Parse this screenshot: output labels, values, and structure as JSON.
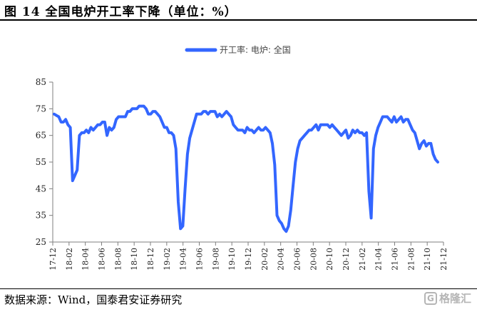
{
  "header": {
    "title": "图 14 全国电炉开工率下降（单位：%）"
  },
  "footer": {
    "source": "数据来源：Wind，国泰君安证券研究",
    "watermark_logo": "G",
    "watermark_text": "格隆汇"
  },
  "colors": {
    "series": "#3366ff",
    "axis": "#7f7f7f",
    "rule": "#000000"
  },
  "chart_data": {
    "type": "line",
    "legend_position": "top-center",
    "grid": false,
    "ylim": [
      25,
      85
    ],
    "yticks": [
      25,
      35,
      45,
      55,
      65,
      75,
      85
    ],
    "xlim": [
      0,
      122
    ],
    "x_tick_labels": [
      "17-12",
      "18-02",
      "18-04",
      "18-06",
      "18-08",
      "18-10",
      "18-12",
      "19-02",
      "19-04",
      "19-06",
      "19-08",
      "19-10",
      "19-12",
      "20-02",
      "20-04",
      "20-06",
      "20-08",
      "20-10",
      "20-12",
      "21-02",
      "21-04",
      "21-06",
      "21-08",
      "21-10",
      "21-12"
    ],
    "series": [
      {
        "name": "开工率: 电炉: 全国",
        "values": [
          73,
          72.5,
          72,
          70,
          70,
          71,
          69,
          68,
          48,
          50,
          52,
          65,
          66,
          66,
          67,
          66,
          68,
          67,
          68,
          69,
          69,
          70,
          70,
          65,
          68,
          67,
          68,
          71,
          72,
          72,
          72,
          72,
          74,
          74,
          75,
          75,
          75,
          76,
          76,
          76,
          75,
          73,
          73,
          74,
          74,
          73,
          72,
          70,
          68,
          68,
          66,
          66,
          65,
          60,
          40,
          30,
          31,
          45,
          58,
          64,
          67,
          70,
          73,
          73,
          73,
          74,
          74,
          73,
          74,
          74,
          74,
          72,
          73,
          72,
          73,
          74,
          73,
          72,
          69,
          68,
          67,
          67,
          67,
          66,
          68,
          67,
          67,
          66,
          67,
          68,
          67,
          67,
          68,
          67,
          66,
          62,
          54,
          35,
          33,
          32,
          30,
          29,
          31,
          37,
          46,
          55,
          60,
          63,
          64,
          65,
          66,
          67,
          67,
          68,
          69,
          67,
          69,
          69,
          69,
          69,
          68,
          69
        ]
      }
    ],
    "series_2021": [
      68,
      67,
      66,
      65,
      66,
      67,
      64,
      65,
      67,
      66,
      67,
      66,
      66,
      65,
      66,
      44,
      34,
      60,
      65,
      68,
      70,
      72,
      72,
      72,
      71,
      70,
      72,
      70,
      71,
      72,
      70,
      71,
      71,
      69,
      67,
      66,
      63,
      60,
      62,
      63,
      61,
      62,
      62,
      58,
      56,
      55
    ]
  }
}
